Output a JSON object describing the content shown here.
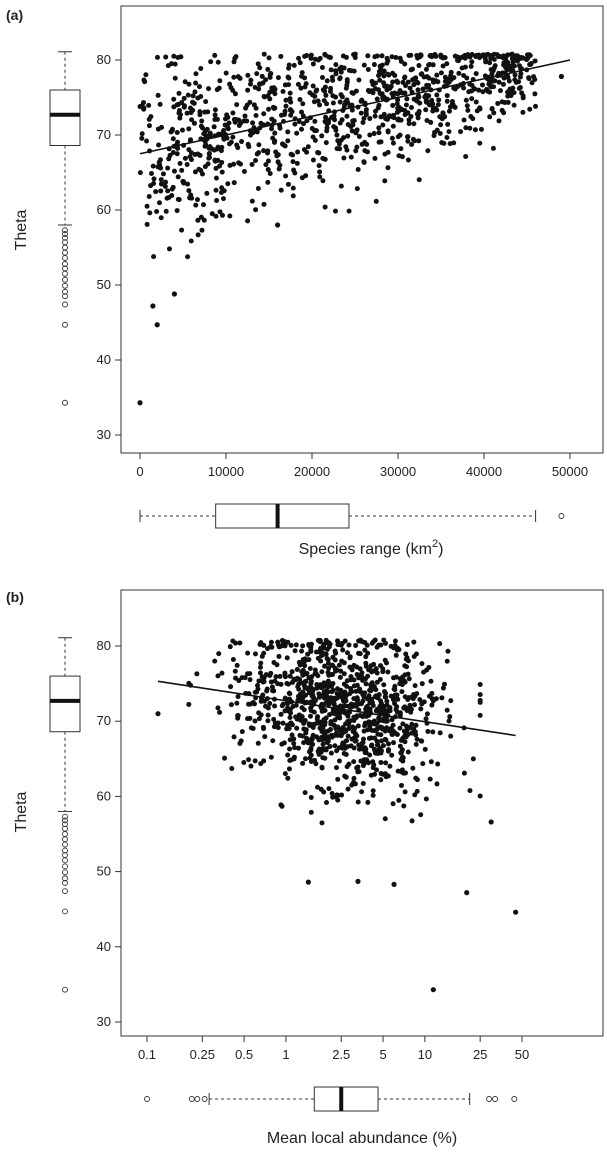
{
  "figure": {
    "panel_a": {
      "letter": "(a)",
      "ylabel": "Theta",
      "xlabel_main": "Species range",
      "xlabel_unit_open": "(km",
      "xlabel_unit_sup": "2",
      "xlabel_unit_close": ")"
    },
    "panel_b": {
      "letter": "(b)",
      "ylabel": "Theta",
      "xlabel": "Mean local abundance (%)"
    }
  },
  "chart_data": [
    {
      "type": "scatter",
      "panel": "(a)",
      "xlabel": "Species range (km2)",
      "ylabel": "Theta",
      "xlim": [
        0,
        50000
      ],
      "ylim": [
        30,
        82
      ],
      "x_ticks": [
        0,
        10000,
        20000,
        30000,
        40000,
        50000
      ],
      "x_tick_labels": [
        "0",
        "10000",
        "20000",
        "30000",
        "40000",
        "50000"
      ],
      "y_ticks": [
        30,
        40,
        50,
        60,
        70,
        80
      ],
      "y_tick_labels": [
        "30",
        "40",
        "50",
        "60",
        "70",
        "80"
      ],
      "regression_line": [
        [
          0,
          67.5
        ],
        [
          50000,
          80.0
        ]
      ],
      "outlier_points": [
        [
          0,
          34.3
        ],
        [
          1500,
          47.2
        ],
        [
          2000,
          44.7
        ],
        [
          4000,
          48.8
        ],
        [
          16000,
          58.0
        ],
        [
          49000,
          77.8
        ]
      ],
      "x_boxplot": {
        "min": 0,
        "q1": 8800,
        "median": 16000,
        "q3": 24300,
        "max": 46000,
        "outliers": [
          49000
        ]
      },
      "y_boxplot": {
        "min": 58,
        "q1": 68.6,
        "median": 72.7,
        "q3": 76.0,
        "max": 81.1,
        "outliers": [
          57.3,
          56.8,
          56.3,
          55.7,
          55.0,
          54.3,
          53.6,
          52.8,
          52.2,
          51.5,
          50.7,
          49.9,
          49.1,
          48.5,
          47.4,
          44.7,
          34.3
        ]
      },
      "grid": false
    },
    {
      "type": "scatter",
      "panel": "(b)",
      "xlabel": "Mean local abundance (%)",
      "ylabel": "Theta",
      "x_scale": "log",
      "xlim": [
        0.08,
        90
      ],
      "ylim": [
        28,
        84
      ],
      "x_ticks": [
        0.1,
        0.25,
        0.5,
        1,
        2.5,
        5,
        10,
        25,
        50
      ],
      "x_tick_labels": [
        "0.1",
        "0.25",
        "0.5",
        "1",
        "2.5",
        "5",
        "10",
        "25",
        "50"
      ],
      "y_ticks": [
        30,
        40,
        50,
        60,
        70,
        80
      ],
      "y_tick_labels": [
        "30",
        "40",
        "50",
        "60",
        "70",
        "80"
      ],
      "regression_line": [
        [
          0.12,
          75.3
        ],
        [
          45,
          68.1
        ]
      ],
      "outlier_points": [
        [
          0.12,
          71.0
        ],
        [
          11.5,
          34.3
        ],
        [
          45,
          44.6
        ],
        [
          1.45,
          48.6
        ],
        [
          3.3,
          48.7
        ],
        [
          6.0,
          48.3
        ],
        [
          20,
          47.2
        ],
        [
          30,
          56.6
        ]
      ],
      "x_boxplot": {
        "min": 0.28,
        "q1": 1.6,
        "median": 2.5,
        "q3": 4.6,
        "max": 21,
        "outliers": [
          0.1,
          0.21,
          0.23,
          0.26,
          29,
          32,
          44
        ]
      },
      "y_boxplot": {
        "min": 58,
        "q1": 68.6,
        "median": 72.7,
        "q3": 76.0,
        "max": 81.1,
        "outliers": [
          57.3,
          56.8,
          56.3,
          55.7,
          55.0,
          54.3,
          53.6,
          52.8,
          52.2,
          51.5,
          50.7,
          49.9,
          49.1,
          48.5,
          47.4,
          44.7,
          34.3
        ]
      },
      "grid": false
    }
  ]
}
